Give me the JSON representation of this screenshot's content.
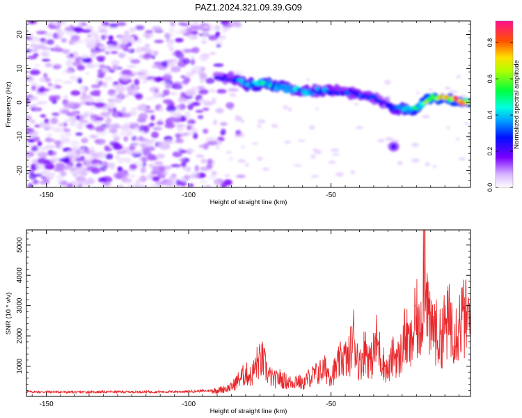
{
  "figure": {
    "title": "PAZ1.2024.321.09.39.G09"
  },
  "chart_data": [
    {
      "type": "heatmap",
      "xlabel": "Height of straight line (km)",
      "ylabel": "Frequency (Hz)",
      "xlim": [
        -157,
        -1
      ],
      "ylim": [
        -25,
        24
      ],
      "xticks": [
        -150,
        -100,
        -50
      ],
      "yticks": [
        -20,
        -10,
        0,
        10,
        20
      ],
      "grid": false,
      "colorbar": {
        "label": "Normalized spectral amplitude",
        "range": [
          0,
          0.92
        ],
        "ticks": [
          0.0,
          0.2,
          0.4,
          0.6,
          0.8
        ],
        "colormap": "rainbow"
      },
      "features": {
        "noise_region_km": [
          -157,
          -87
        ],
        "signal_ridge": {
          "x": [
            -90,
            -85,
            -80,
            -75,
            -70,
            -65,
            -60,
            -55,
            -50,
            -45,
            -40,
            -35,
            -30,
            -25,
            -20,
            -15,
            -10,
            -5,
            -1
          ],
          "frequency": [
            7.5,
            7,
            5.5,
            5.5,
            5,
            4,
            3,
            3.5,
            3.5,
            3,
            2.5,
            1.5,
            -1,
            -2,
            -2,
            1.5,
            1,
            0.5,
            0.5
          ],
          "amplitude": [
            0.25,
            0.3,
            0.45,
            0.5,
            0.5,
            0.4,
            0.4,
            0.35,
            0.35,
            0.3,
            0.35,
            0.3,
            0.25,
            0.5,
            0.55,
            0.7,
            0.85,
            0.8,
            0.7
          ]
        },
        "secondary_blob": {
          "x": -28,
          "frequency": -13
        }
      }
    },
    {
      "type": "line",
      "xlabel": "Height of straight line (km)",
      "ylabel": "SNR (10 * v/v)",
      "xlim": [
        -157,
        -1
      ],
      "ylim": [
        0,
        5500
      ],
      "xticks": [
        -150,
        -100,
        -50
      ],
      "yticks": [
        1000,
        2000,
        3000,
        4000,
        5000
      ],
      "grid": false,
      "series": [
        {
          "color": "#e8282c",
          "x": [
            -157,
            -150,
            -140,
            -130,
            -120,
            -110,
            -100,
            -95,
            -90,
            -85,
            -82,
            -80,
            -78,
            -76,
            -74,
            -72,
            -70,
            -68,
            -66,
            -64,
            -62,
            -60,
            -58,
            -56,
            -54,
            -52,
            -50,
            -48,
            -46,
            -44,
            -42,
            -40,
            -38,
            -36,
            -34,
            -32,
            -30,
            -28,
            -26,
            -24,
            -22,
            -20,
            -19,
            -18,
            -17,
            -16,
            -15,
            -14,
            -12,
            -10,
            -8,
            -6,
            -4,
            -2,
            -1
          ],
          "values": [
            150,
            150,
            140,
            150,
            150,
            150,
            160,
            180,
            200,
            300,
            600,
            750,
            650,
            1100,
            1200,
            700,
            550,
            600,
            500,
            450,
            550,
            400,
            600,
            700,
            800,
            900,
            700,
            950,
            1300,
            1200,
            2000,
            1000,
            1600,
            1100,
            1800,
            1200,
            800,
            1400,
            1200,
            2000,
            1600,
            2600,
            2000,
            3100,
            5500,
            2900,
            2000,
            2400,
            1800,
            2300,
            2500,
            2200,
            2600,
            2500,
            2500
          ]
        }
      ]
    }
  ]
}
